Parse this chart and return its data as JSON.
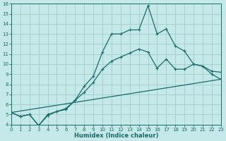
{
  "xlabel": "Humidex (Indice chaleur)",
  "bg_color": "#c5e8e8",
  "grid_color": "#a0cccc",
  "line_color": "#1a6b6b",
  "xlim": [
    0,
    23
  ],
  "ylim": [
    4,
    16
  ],
  "xticks": [
    0,
    1,
    2,
    3,
    4,
    5,
    6,
    7,
    8,
    9,
    10,
    11,
    12,
    13,
    14,
    15,
    16,
    17,
    18,
    19,
    20,
    21,
    22,
    23
  ],
  "yticks": [
    4,
    5,
    6,
    7,
    8,
    9,
    10,
    11,
    12,
    13,
    14,
    15,
    16
  ],
  "curve1_x": [
    0,
    1,
    2,
    3,
    4,
    5,
    6,
    7,
    8,
    9,
    10,
    11,
    12,
    13,
    14,
    15,
    16,
    17,
    18,
    19,
    20,
    21,
    22,
    23
  ],
  "curve1_y": [
    5.2,
    4.8,
    5.0,
    3.9,
    4.9,
    5.3,
    5.5,
    6.4,
    7.8,
    8.8,
    11.2,
    13.0,
    13.0,
    13.4,
    13.4,
    15.8,
    13.0,
    13.5,
    11.8,
    11.3,
    10.0,
    9.8,
    9.3,
    9.2
  ],
  "curve2_x": [
    0,
    1,
    2,
    3,
    4,
    5,
    6,
    7,
    8,
    9,
    10,
    11,
    12,
    13,
    14,
    15,
    16,
    17,
    18,
    19,
    20,
    21,
    22,
    23
  ],
  "curve2_y": [
    5.2,
    4.8,
    5.0,
    3.9,
    5.0,
    5.3,
    5.6,
    6.4,
    7.2,
    8.2,
    9.5,
    10.3,
    10.7,
    11.1,
    11.5,
    11.2,
    9.6,
    10.5,
    9.5,
    9.5,
    10.0,
    9.8,
    9.0,
    8.5
  ],
  "curve3_x": [
    0,
    23
  ],
  "curve3_y": [
    5.2,
    8.5
  ],
  "marker_style": "+",
  "marker_size": 3,
  "line_width": 0.9,
  "tick_fontsize": 5,
  "xlabel_fontsize": 6
}
